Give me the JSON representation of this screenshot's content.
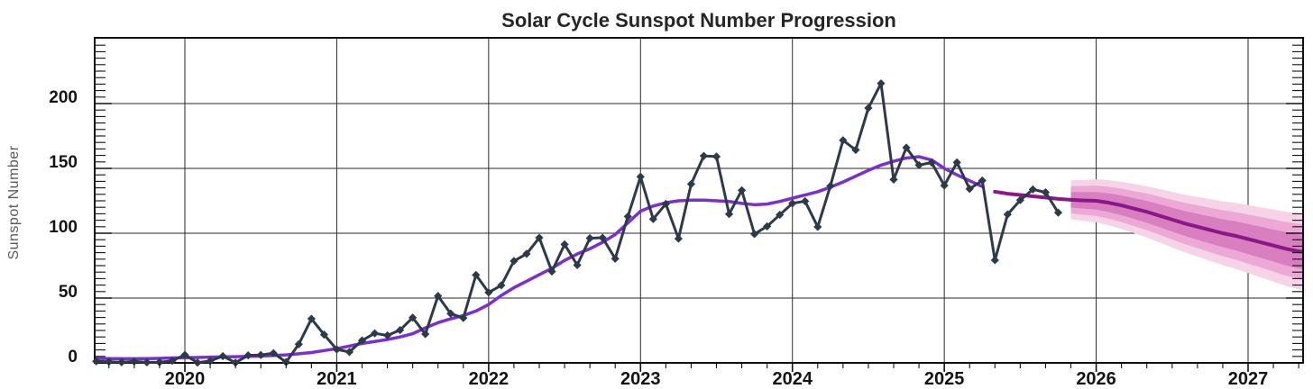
{
  "title": "Solar Cycle Sunspot Number Progression",
  "y_axis": {
    "label": "Sunspot Number",
    "ticks": [
      0,
      50,
      100,
      150,
      200
    ],
    "max": 250,
    "minor_step": 5
  },
  "x_axis": {
    "year_labels": [
      "2020",
      "2021",
      "2022",
      "2023",
      "2024",
      "2025",
      "2026",
      "2027"
    ],
    "start_month": "2019-06",
    "end_month": "2027-06",
    "minor_tick_months": 2
  },
  "colors": {
    "background": "#ffffff",
    "grid": "#2a2a2a",
    "frame": "#111111",
    "observed": "#2D3A4A",
    "smoothed": "#7B2FD0",
    "forecast": "#8A1688",
    "band_inner": "#D87FC0",
    "band_middle": "#ECA9D6",
    "band_outer": "#F7D3E8"
  },
  "chart_data": {
    "type": "line",
    "title": "Solar Cycle Sunspot Number Progression",
    "xlabel": "",
    "ylabel": "Sunspot Number",
    "ylim": [
      0,
      250
    ],
    "grid": true,
    "legend": "none",
    "x_start": "2019-06",
    "cadence": "monthly",
    "observed": {
      "color": "#2D3A4A",
      "marker": "diamond",
      "values": [
        1.2,
        0.9,
        0.5,
        1.1,
        0.4,
        0.5,
        1.6,
        6.2,
        0.2,
        1.5,
        5.2,
        0.2,
        5.8,
        6.1,
        7.5,
        0.6,
        14.4,
        34.0,
        21.8,
        10.4,
        8.4,
        17.3,
        22.8,
        21.2,
        25.3,
        34.9,
        22.2,
        51.6,
        38.0,
        34.6,
        67.8,
        54.3,
        59.8,
        78.6,
        84.1,
        96.5,
        70.5,
        91.4,
        75.4,
        96.2,
        96.5,
        80.4,
        112.9,
        143.6,
        110.9,
        122.6,
        95.8,
        137.9,
        159.6,
        159.1,
        114.8,
        133.1,
        99.4,
        105.3,
        114.2,
        123.0,
        124.7,
        104.9,
        136.5,
        171.7,
        164.2,
        196.5,
        215.5,
        141.4,
        166.0,
        152.5,
        154.5,
        136.8,
        154.6,
        134.2,
        140.6,
        79.2,
        114.5,
        125.5,
        133.8,
        131.5,
        115.9
      ]
    },
    "smoothed": {
      "color": "#7B2FD0",
      "values": [
        3.5,
        3.3,
        3.2,
        3.2,
        3.3,
        3.5,
        3.8,
        4.0,
        4.2,
        4.4,
        4.6,
        4.8,
        5.0,
        5.3,
        5.7,
        6.2,
        7.0,
        8.0,
        9.5,
        11.0,
        13.0,
        15.0,
        16.5,
        18.0,
        20.0,
        22.5,
        27.0,
        31.0,
        34.0,
        36.5,
        40.0,
        45.0,
        52.0,
        58.0,
        63.0,
        68.0,
        73.0,
        79.0,
        84.0,
        88.0,
        93.0,
        99.0,
        108.0,
        117.0,
        121.0,
        123.5,
        125.0,
        125.5,
        125.5,
        125.0,
        124.5,
        123.0,
        122.0,
        122.5,
        124.5,
        127.0,
        129.5,
        132.0,
        135.5,
        139.5,
        144.0,
        148.5,
        152.5,
        155.5,
        158.0,
        159.0,
        156.5,
        150.0,
        145.0,
        140.5,
        136.0
      ]
    },
    "forecast": {
      "color": "#8A1688",
      "start_offset_months": 71,
      "values": [
        132.0,
        130.5,
        129.5,
        128.5,
        127.5,
        126.5,
        125.8,
        125.3,
        125.0,
        123.5,
        121.5,
        119.0,
        116.5,
        113.5,
        110.5,
        107.5,
        105.0,
        102.5,
        100.0,
        98.0,
        95.5,
        93.0,
        90.5,
        88.0,
        86.0,
        85.2
      ]
    },
    "uncertainty_bands": {
      "start_offset_months": 77,
      "colors": {
        "inner": "#D87FC0",
        "middle": "#ECA9D6",
        "outer": "#F7D3E8"
      },
      "inner_half_width": [
        6.0,
        6.4,
        6.8,
        7.2,
        7.6,
        8.0,
        8.4,
        8.8,
        9.2,
        9.6,
        10.0,
        10.4,
        10.8,
        11.2,
        11.6,
        12.0,
        12.4,
        12.8,
        13.2,
        13.6
      ],
      "middle_half_width": [
        10.5,
        11.1,
        11.7,
        12.3,
        12.9,
        13.5,
        14.1,
        14.7,
        15.3,
        15.9,
        16.5,
        17.1,
        17.7,
        18.3,
        18.9,
        19.5,
        20.1,
        20.7,
        21.3,
        21.9
      ],
      "outer_half_width": [
        15.0,
        15.8,
        16.6,
        17.4,
        18.2,
        19.0,
        19.8,
        20.6,
        21.4,
        22.2,
        23.0,
        23.8,
        24.6,
        25.4,
        26.2,
        27.0,
        27.8,
        28.6,
        29.4,
        30.2
      ]
    }
  }
}
